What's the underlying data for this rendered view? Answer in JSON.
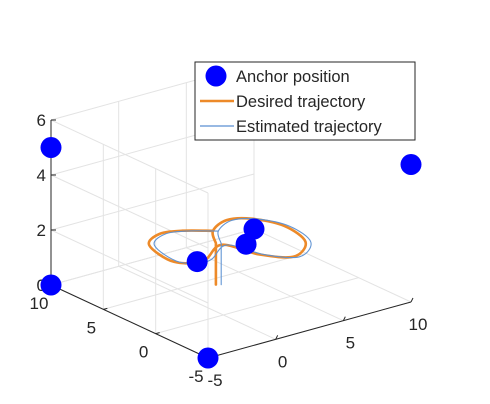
{
  "chart_data": {
    "type": "scatter3d",
    "title": "",
    "xlabel": "",
    "ylabel": "",
    "zlabel": "",
    "xlim": [
      -5,
      10
    ],
    "ylim": [
      -5,
      10
    ],
    "zlim": [
      0,
      6
    ],
    "x_ticks": [
      -5,
      0,
      5,
      10
    ],
    "y_ticks": [
      -5,
      0,
      5,
      10
    ],
    "z_ticks": [
      0,
      2,
      4,
      6
    ],
    "grid": true,
    "legend_position": "top-right",
    "series": [
      {
        "name": "Anchor position",
        "kind": "markers",
        "color": "#0000ff",
        "points": [
          {
            "x": -5,
            "y": 10,
            "z": 5
          },
          {
            "x": 10,
            "y": -5,
            "z": 5
          },
          {
            "x": -5,
            "y": 10,
            "z": 0
          },
          {
            "x": -5,
            "y": -5,
            "z": 0
          },
          {
            "x": 10,
            "y": 10,
            "z": 0
          },
          {
            "x": 0,
            "y": 2.5,
            "z": 1.5
          },
          {
            "x": 4,
            "y": 3,
            "z": 1.5
          }
        ]
      },
      {
        "name": "Desired trajectory",
        "kind": "line",
        "color": "#ed8a29",
        "points": [
          {
            "x": 2.7,
            "y": 4.2,
            "z": 0.0
          },
          {
            "x": 2.7,
            "y": 4.2,
            "z": 1.5
          },
          {
            "x": 3.8,
            "y": 5.9,
            "z": 1.5
          },
          {
            "x": 5.5,
            "y": 6.8,
            "z": 1.5
          },
          {
            "x": 6.8,
            "y": 6.1,
            "z": 1.5
          },
          {
            "x": 7.6,
            "y": 4.0,
            "z": 1.5
          },
          {
            "x": 7.0,
            "y": 1.2,
            "z": 1.5
          },
          {
            "x": 5.0,
            "y": -0.3,
            "z": 1.5
          },
          {
            "x": 3.6,
            "y": 1.2,
            "z": 1.5
          },
          {
            "x": 2.8,
            "y": 3.8,
            "z": 1.5
          },
          {
            "x": 0.4,
            "y": 2.4,
            "z": 1.5
          },
          {
            "x": -1.1,
            "y": 3.3,
            "z": 1.5
          },
          {
            "x": -0.6,
            "y": 6.3,
            "z": 1.5
          },
          {
            "x": 1.0,
            "y": 7.4,
            "z": 1.5
          },
          {
            "x": 2.4,
            "y": 7.0,
            "z": 1.5
          },
          {
            "x": 3.8,
            "y": 5.9,
            "z": 1.5
          }
        ]
      },
      {
        "name": "Estimated trajectory",
        "kind": "line",
        "color": "#5a8fd2",
        "offset": 0.22
      }
    ]
  }
}
